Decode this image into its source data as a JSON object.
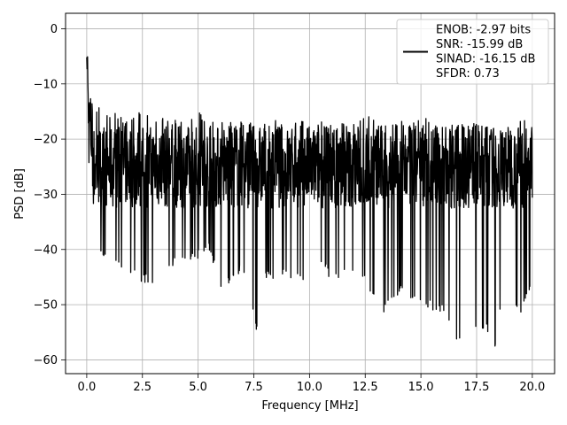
{
  "chart_data": {
    "type": "line",
    "title": "",
    "xlabel": "Frequency [MHz]",
    "ylabel": "PSD [dB]",
    "xlim": [
      -0.95,
      21.0
    ],
    "ylim": [
      -62.5,
      2.8
    ],
    "grid": true,
    "x_ticks": [
      0.0,
      2.5,
      5.0,
      7.5,
      10.0,
      12.5,
      15.0,
      17.5,
      20.0
    ],
    "x_tick_labels": [
      "0.0",
      "2.5",
      "5.0",
      "7.5",
      "10.0",
      "12.5",
      "15.0",
      "17.5",
      "20.0"
    ],
    "y_ticks": [
      0,
      -10,
      -20,
      -30,
      -40,
      -50,
      -60
    ],
    "y_tick_labels": [
      "0",
      "−10",
      "−20",
      "−30",
      "−40",
      "−50",
      "−60"
    ],
    "legend_position": "upper right",
    "legend_entries": [
      "ENOB: -2.97 bits",
      "SNR: -15.99 dB",
      "SINAD: -16.15 dB",
      "SFDR: 0.73"
    ],
    "series": [
      {
        "color": "#000000",
        "x": [
          0.0,
          0.02,
          0.04,
          0.06,
          0.08,
          0.1,
          0.15,
          0.2,
          0.25,
          0.3,
          0.4,
          0.5,
          0.75,
          1.0,
          1.5,
          2.5,
          3.0,
          4.0,
          5.0,
          5.5,
          6.0,
          7.0,
          7.6,
          8.0,
          9.0,
          10.0,
          10.5,
          11.0,
          12.0,
          12.5,
          13.3,
          14.0,
          15.0,
          15.5,
          16.0,
          16.7,
          17.0,
          17.5,
          18.0,
          18.35,
          18.5,
          19.0,
          19.5,
          20.0
        ],
        "upper": [
          0,
          -2,
          -3,
          -8,
          -10,
          -11,
          -11,
          -12,
          -13,
          -14,
          -15,
          -14,
          -14,
          -14.5,
          -16,
          -15,
          -16,
          -16.5,
          -15,
          -16.5,
          -17,
          -16.5,
          -17,
          -16,
          -17,
          -16,
          -16.5,
          -17,
          -16,
          -15.5,
          -17.5,
          -16.5,
          -16.5,
          -16,
          -17.5,
          -17,
          -17.5,
          -17,
          -17.5,
          -18,
          -18,
          -17.5,
          -16,
          -18
        ],
        "lower": [
          -7,
          -10,
          -12,
          -18,
          -20,
          -25,
          -22,
          -27,
          -28,
          -32,
          -34,
          -38,
          -43,
          -41,
          -43,
          -46,
          -46.5,
          -43,
          -42,
          -40,
          -48,
          -44,
          -55,
          -46,
          -45,
          -47,
          -43,
          -46,
          -44,
          -46,
          -52,
          -48,
          -51,
          -51,
          -52,
          -57,
          -50,
          -56,
          -55,
          -59,
          -53,
          -48,
          -52,
          -46
        ],
        "mid": -25,
        "seed": 7
      }
    ]
  }
}
